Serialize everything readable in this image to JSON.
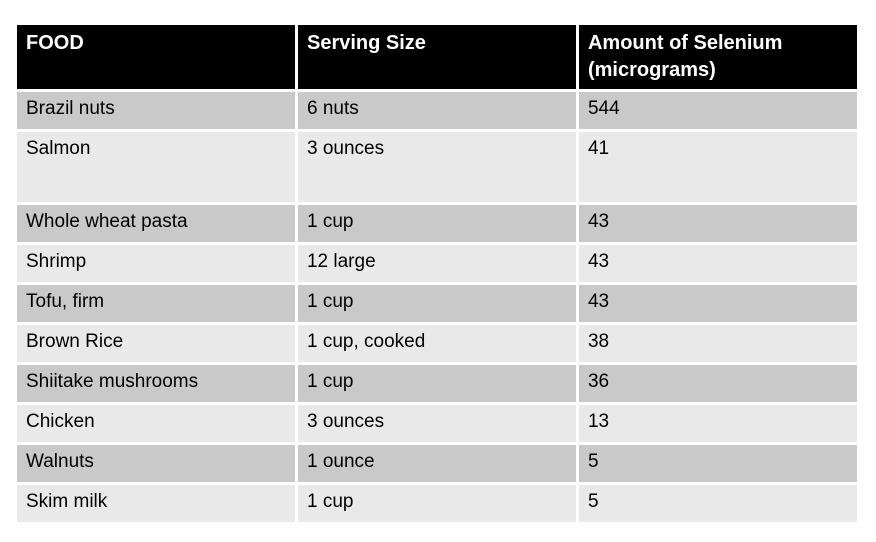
{
  "colors": {
    "header_bg": "#000000",
    "header_text": "#ffffff",
    "row_dark": "#c9c9c9",
    "row_light": "#e9e9e9",
    "body_text": "#000000",
    "page_background": "#ffffff"
  },
  "table": {
    "columns": [
      {
        "key": "food",
        "label": "FOOD"
      },
      {
        "key": "serving",
        "label": "Serving Size"
      },
      {
        "key": "selenium",
        "label": "Amount of Selenium (micrograms)"
      }
    ],
    "rows": [
      {
        "food": "Brazil nuts",
        "serving": "6 nuts",
        "selenium": "544"
      },
      {
        "food": "Salmon",
        "serving": "3 ounces",
        "selenium": "41"
      },
      {
        "food": "Whole wheat pasta",
        "serving": "1 cup",
        "selenium": "43"
      },
      {
        "food": "Shrimp",
        "serving": "12 large",
        "selenium": "43"
      },
      {
        "food": "Tofu, firm",
        "serving": "1 cup",
        "selenium": "43"
      },
      {
        "food": "Brown Rice",
        "serving": "1 cup, cooked",
        "selenium": "38"
      },
      {
        "food": "Shiitake mushrooms",
        "serving": "1 cup",
        "selenium": "36"
      },
      {
        "food": "Chicken",
        "serving": "3 ounces",
        "selenium": "13"
      },
      {
        "food": "Walnuts",
        "serving": "1 ounce",
        "selenium": "5"
      },
      {
        "food": "Skim milk",
        "serving": "1 cup",
        "selenium": "5"
      }
    ]
  },
  "chart_data": {
    "type": "table",
    "title": "",
    "columns": [
      "FOOD",
      "Serving Size",
      "Amount of Selenium (micrograms)"
    ],
    "categories": [
      "Brazil nuts",
      "Salmon",
      "Whole wheat pasta",
      "Shrimp",
      "Tofu, firm",
      "Brown Rice",
      "Shiitake mushrooms",
      "Chicken",
      "Walnuts",
      "Skim milk"
    ],
    "serving_sizes": [
      "6 nuts",
      "3 ounces",
      "1 cup",
      "12 large",
      "1 cup",
      "1 cup, cooked",
      "1 cup",
      "3 ounces",
      "1 ounce",
      "1 cup"
    ],
    "values": [
      544,
      41,
      43,
      43,
      43,
      38,
      36,
      13,
      5,
      5
    ]
  }
}
